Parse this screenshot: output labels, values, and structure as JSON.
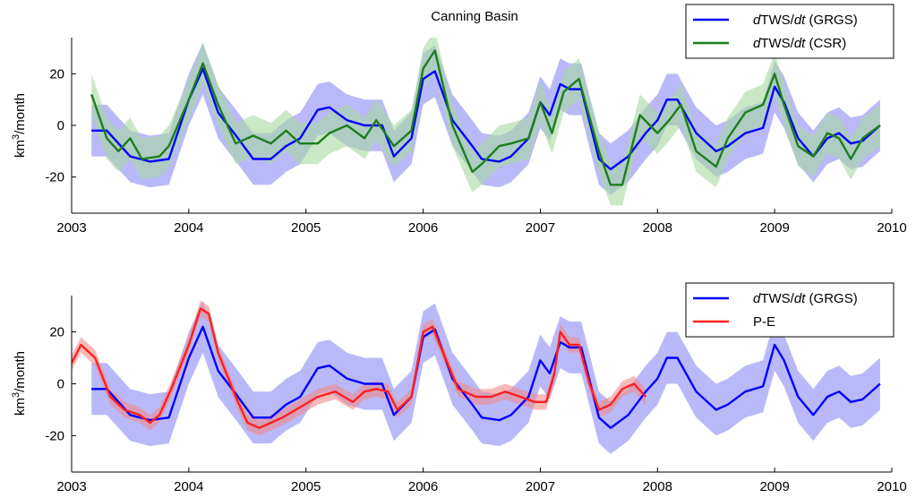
{
  "chart_data": [
    {
      "type": "line",
      "title": "Canning Basin",
      "ylabel": "km³/month",
      "xlim": [
        2003,
        2010
      ],
      "ylim": [
        -34,
        34
      ],
      "xticks": [
        "2003",
        "2004",
        "2005",
        "2006",
        "2007",
        "2008",
        "2009",
        "2010"
      ],
      "yticks": [
        "20",
        "0",
        "-20"
      ],
      "legend_position": "top-right",
      "series": [
        {
          "name": "dTWS/dt (GRGS)",
          "color": "#0000ff",
          "band_color": "#8a8af5",
          "band_halfwidth": 10,
          "x": [
            2003.17,
            2003.3,
            2003.5,
            2003.67,
            2003.83,
            2004.0,
            2004.12,
            2004.25,
            2004.42,
            2004.55,
            2004.7,
            2004.83,
            2004.95,
            2005.1,
            2005.2,
            2005.35,
            2005.5,
            2005.65,
            2005.75,
            2005.9,
            2006.0,
            2006.1,
            2006.25,
            2006.42,
            2006.5,
            2006.65,
            2006.75,
            2006.9,
            2007.0,
            2007.08,
            2007.17,
            2007.25,
            2007.35,
            2007.5,
            2007.6,
            2007.75,
            2007.9,
            2008.0,
            2008.08,
            2008.17,
            2008.33,
            2008.5,
            2008.6,
            2008.75,
            2008.9,
            2009.0,
            2009.08,
            2009.2,
            2009.33,
            2009.45,
            2009.55,
            2009.65,
            2009.75,
            2009.9
          ],
          "y": [
            -2,
            -2,
            -12,
            -14,
            -13,
            10,
            22,
            5,
            -5,
            -13,
            -13,
            -8,
            -5,
            6,
            7,
            2,
            0,
            0,
            -12,
            -5,
            18,
            21,
            2,
            -8,
            -13,
            -14,
            -12,
            -5,
            9,
            4,
            16,
            14,
            14,
            -13,
            -17,
            -12,
            -3,
            2,
            10,
            10,
            -3,
            -10,
            -8,
            -3,
            -1,
            15,
            9,
            -5,
            -12,
            -5,
            -3,
            -7,
            -6,
            0
          ]
        },
        {
          "name": "dTWS/dt (CSR)",
          "color": "#1e7d1e",
          "band_color": "#a8d8a0",
          "band_halfwidth": 8,
          "x": [
            2003.17,
            2003.3,
            2003.4,
            2003.5,
            2003.6,
            2003.75,
            2003.83,
            2004.0,
            2004.12,
            2004.25,
            2004.4,
            2004.55,
            2004.7,
            2004.83,
            2004.95,
            2005.1,
            2005.2,
            2005.35,
            2005.5,
            2005.6,
            2005.75,
            2005.9,
            2006.0,
            2006.1,
            2006.25,
            2006.42,
            2006.5,
            2006.65,
            2006.75,
            2006.9,
            2007.0,
            2007.1,
            2007.2,
            2007.33,
            2007.5,
            2007.6,
            2007.7,
            2007.85,
            2008.0,
            2008.1,
            2008.2,
            2008.33,
            2008.5,
            2008.6,
            2008.75,
            2008.9,
            2009.0,
            2009.08,
            2009.2,
            2009.33,
            2009.45,
            2009.55,
            2009.65,
            2009.75,
            2009.9
          ],
          "y": [
            12,
            -5,
            -10,
            -5,
            -13,
            -12,
            -8,
            10,
            24,
            8,
            -7,
            -4,
            -7,
            -2,
            -7,
            -7,
            -3,
            0,
            -5,
            2,
            -8,
            -2,
            22,
            29,
            0,
            -18,
            -15,
            -8,
            -7,
            -5,
            9,
            -3,
            13,
            18,
            -10,
            -23,
            -23,
            4,
            -3,
            2,
            8,
            -10,
            -16,
            -5,
            5,
            8,
            20,
            8,
            -8,
            -12,
            -3,
            -5,
            -13,
            -5,
            0
          ]
        }
      ]
    },
    {
      "type": "line",
      "title": "",
      "ylabel": "km³/month",
      "xlim": [
        2003,
        2010
      ],
      "ylim": [
        -34,
        34
      ],
      "xticks": [
        "2003",
        "2004",
        "2005",
        "2006",
        "2007",
        "2008",
        "2009",
        "2010"
      ],
      "yticks": [
        "20",
        "0",
        "-20"
      ],
      "legend_position": "top-right",
      "series": [
        {
          "name": "dTWS/dt (GRGS)",
          "color": "#0000ff",
          "band_color": "#8a8af5",
          "band_halfwidth": 10,
          "x": [
            2003.17,
            2003.3,
            2003.5,
            2003.67,
            2003.83,
            2004.0,
            2004.12,
            2004.25,
            2004.42,
            2004.55,
            2004.7,
            2004.83,
            2004.95,
            2005.1,
            2005.2,
            2005.35,
            2005.5,
            2005.65,
            2005.75,
            2005.9,
            2006.0,
            2006.1,
            2006.25,
            2006.42,
            2006.5,
            2006.65,
            2006.75,
            2006.9,
            2007.0,
            2007.08,
            2007.17,
            2007.25,
            2007.35,
            2007.5,
            2007.6,
            2007.75,
            2007.9,
            2008.0,
            2008.08,
            2008.17,
            2008.33,
            2008.5,
            2008.6,
            2008.75,
            2008.9,
            2009.0,
            2009.08,
            2009.2,
            2009.33,
            2009.45,
            2009.55,
            2009.65,
            2009.75,
            2009.9
          ],
          "y": [
            -2,
            -2,
            -12,
            -14,
            -13,
            10,
            22,
            5,
            -5,
            -13,
            -13,
            -8,
            -5,
            6,
            7,
            2,
            0,
            0,
            -12,
            -5,
            18,
            21,
            2,
            -8,
            -13,
            -14,
            -12,
            -5,
            9,
            4,
            16,
            14,
            14,
            -13,
            -17,
            -12,
            -3,
            2,
            10,
            10,
            -3,
            -10,
            -8,
            -3,
            -1,
            15,
            9,
            -5,
            -12,
            -5,
            -3,
            -7,
            -6,
            0
          ]
        },
        {
          "name": "P-E",
          "color": "#ff2020",
          "band_color": "#f08a8a",
          "band_halfwidth": 3,
          "x": [
            2003.0,
            2003.08,
            2003.2,
            2003.33,
            2003.45,
            2003.58,
            2003.67,
            2003.75,
            2003.85,
            2004.0,
            2004.1,
            2004.17,
            2004.25,
            2004.4,
            2004.5,
            2004.6,
            2004.7,
            2004.8,
            2004.95,
            2005.1,
            2005.25,
            2005.4,
            2005.5,
            2005.6,
            2005.7,
            2005.78,
            2005.9,
            2006.0,
            2006.08,
            2006.17,
            2006.3,
            2006.45,
            2006.58,
            2006.7,
            2006.83,
            2006.95,
            2007.05,
            2007.12,
            2007.17,
            2007.25,
            2007.33,
            2007.42,
            2007.5,
            2007.6,
            2007.7,
            2007.8,
            2007.9
          ],
          "y": [
            8,
            15,
            10,
            -5,
            -10,
            -12,
            -15,
            -12,
            -2,
            15,
            29,
            27,
            12,
            -5,
            -15,
            -17,
            -15,
            -13,
            -9,
            -5,
            -3,
            -7,
            -3,
            -2,
            -3,
            -10,
            -5,
            20,
            22,
            12,
            -2,
            -5,
            -5,
            -3,
            -5,
            -7,
            -7,
            4,
            20,
            15,
            15,
            0,
            -10,
            -8,
            -2,
            0,
            -5
          ]
        }
      ]
    }
  ]
}
